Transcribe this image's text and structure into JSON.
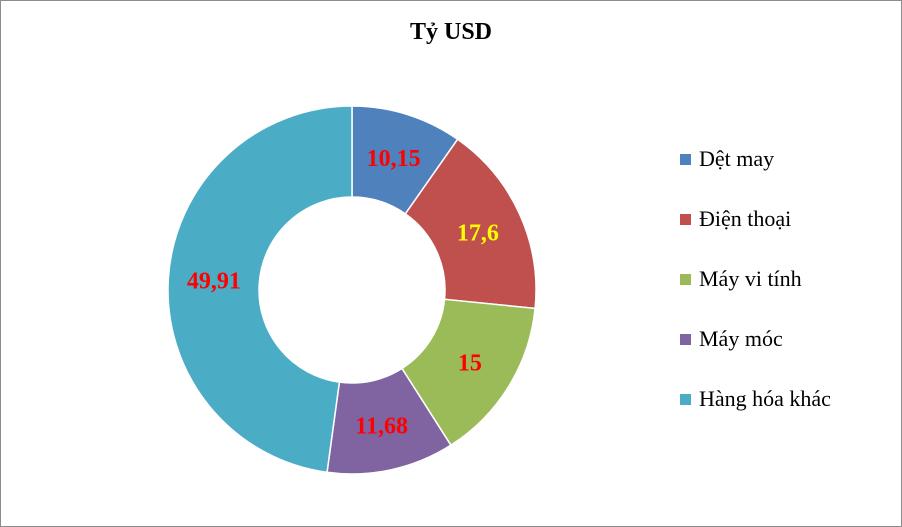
{
  "chart_data": {
    "type": "donut",
    "title": "Tỷ USD",
    "categories": [
      "Dệt may",
      "Điện thoại",
      "Máy vi tính",
      "Máy móc",
      "Hàng hóa khác"
    ],
    "values": [
      10.15,
      17.6,
      15,
      11.68,
      49.91
    ],
    "value_labels": [
      "10,15",
      "17,6",
      "15",
      "11,68",
      "49,91"
    ],
    "colors": [
      "#4f81bd",
      "#c0504d",
      "#9bbb59",
      "#8064a2",
      "#4bacc6"
    ],
    "label_colors": [
      "#ff0000",
      "#ffff00",
      "#ff0000",
      "#ff0000",
      "#ff0000"
    ],
    "legend_position": "right",
    "start_angle_deg": 0,
    "direction": "clockwise"
  }
}
